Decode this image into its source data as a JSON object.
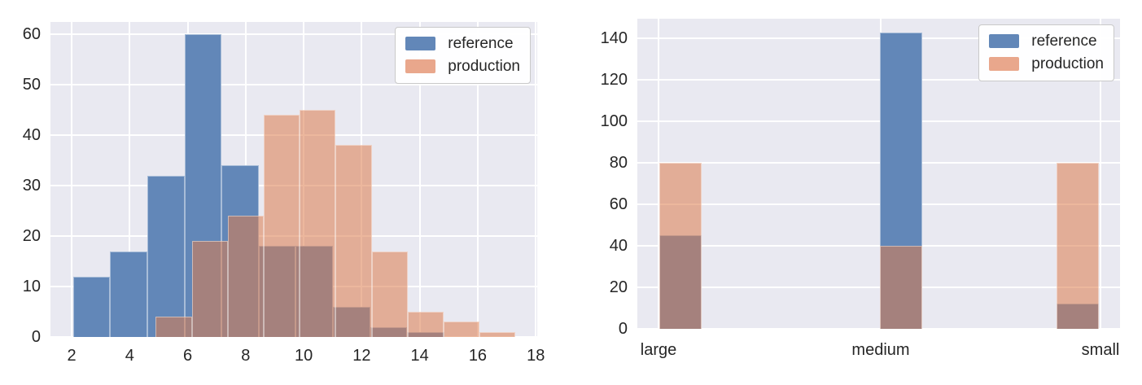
{
  "page": {
    "background": "#ffffff"
  },
  "colors": {
    "reference": "#6287b8",
    "production": "#dd7b4d",
    "production_alpha": 0.55,
    "reference_legend": "#6287b8",
    "production_legend": "#e9a78c",
    "plot_background": "#e9e9f1",
    "gridline": "#ffffff",
    "tick_text": "#262626",
    "legend_background": "rgba(255,255,255,0.95)",
    "legend_border": "#c9c9c9"
  },
  "legend": {
    "items": [
      {
        "label": "reference"
      },
      {
        "label": "production"
      }
    ]
  },
  "chart_data": [
    {
      "type": "histogram",
      "title": "",
      "xlabel": "",
      "ylabel": "",
      "x_ticks": [
        2,
        4,
        6,
        8,
        10,
        12,
        14,
        16,
        18
      ],
      "y_ticks": [
        0,
        10,
        20,
        30,
        40,
        50,
        60
      ],
      "xlim": [
        1.27,
        18.05
      ],
      "ylim": [
        0,
        62.4
      ],
      "grid": true,
      "legend_position": "upper-right",
      "series": [
        {
          "name": "reference",
          "bin_start": 2.05,
          "bin_width": 1.28,
          "counts": [
            12,
            17,
            32,
            60,
            34,
            18,
            18,
            6,
            2,
            1
          ]
        },
        {
          "name": "production",
          "bin_start": 4.9,
          "bin_width": 1.24,
          "counts": [
            4,
            19,
            24,
            44,
            45,
            38,
            17,
            5,
            3,
            1
          ]
        }
      ]
    },
    {
      "type": "bar",
      "title": "",
      "xlabel": "",
      "ylabel": "",
      "categories": [
        "large",
        "medium",
        "small"
      ],
      "series": [
        {
          "name": "reference",
          "values": [
            45,
            143,
            12
          ]
        },
        {
          "name": "production",
          "values": [
            80,
            40,
            80
          ]
        }
      ],
      "y_ticks": [
        0,
        20,
        40,
        60,
        80,
        100,
        120,
        140
      ],
      "ylim": [
        0,
        149.6
      ],
      "grid": true,
      "legend_position": "upper-right"
    }
  ]
}
